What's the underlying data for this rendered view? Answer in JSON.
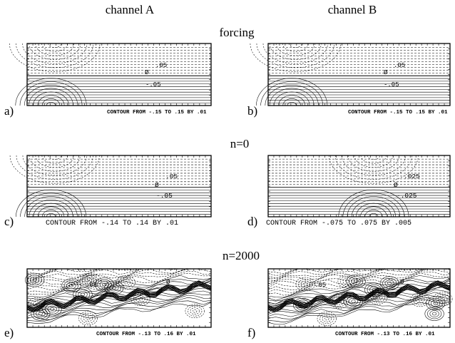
{
  "columns": {
    "left": "channel A",
    "right": "channel B"
  },
  "rows": {
    "forcing": "forcing",
    "n0": "n=0",
    "n2000": "n=2000"
  },
  "panels": [
    {
      "id": "a",
      "letter": "a)",
      "caption": "CONTOUR FROM -.15 TO .15 BY .01",
      "pos_label": ".05",
      "zero_label": "Ø",
      "neg_label": "-.05"
    },
    {
      "id": "b",
      "letter": "b)",
      "caption": "CONTOUR FROM -.15 TO .15 BY .01",
      "pos_label": ".05",
      "zero_label": "Ø",
      "neg_label": "-.05"
    },
    {
      "id": "c",
      "letter": "c)",
      "caption": "CONTOUR FROM -.14 TO .14 BY .01",
      "pos_label": ".05",
      "zero_label": "Ø",
      "neg_label": "-.05"
    },
    {
      "id": "d",
      "letter": "d)",
      "caption": "CONTOUR FROM -.075 TO .075 BY .005",
      "pos_label": ".025",
      "zero_label": "Ø",
      "neg_label": "-.025"
    },
    {
      "id": "e",
      "letter": "e)",
      "caption": "CONTOUR FROM -.13 TO .16 BY .01",
      "pos_label": ".05",
      "zero_label": "Ø",
      "neg_label": ""
    },
    {
      "id": "f",
      "letter": "f)",
      "caption": "CONTOUR FROM -.13 TO .16 BY .01",
      "pos_label": ".05",
      "zero_label": "Ø",
      "neg_label": ""
    }
  ]
}
